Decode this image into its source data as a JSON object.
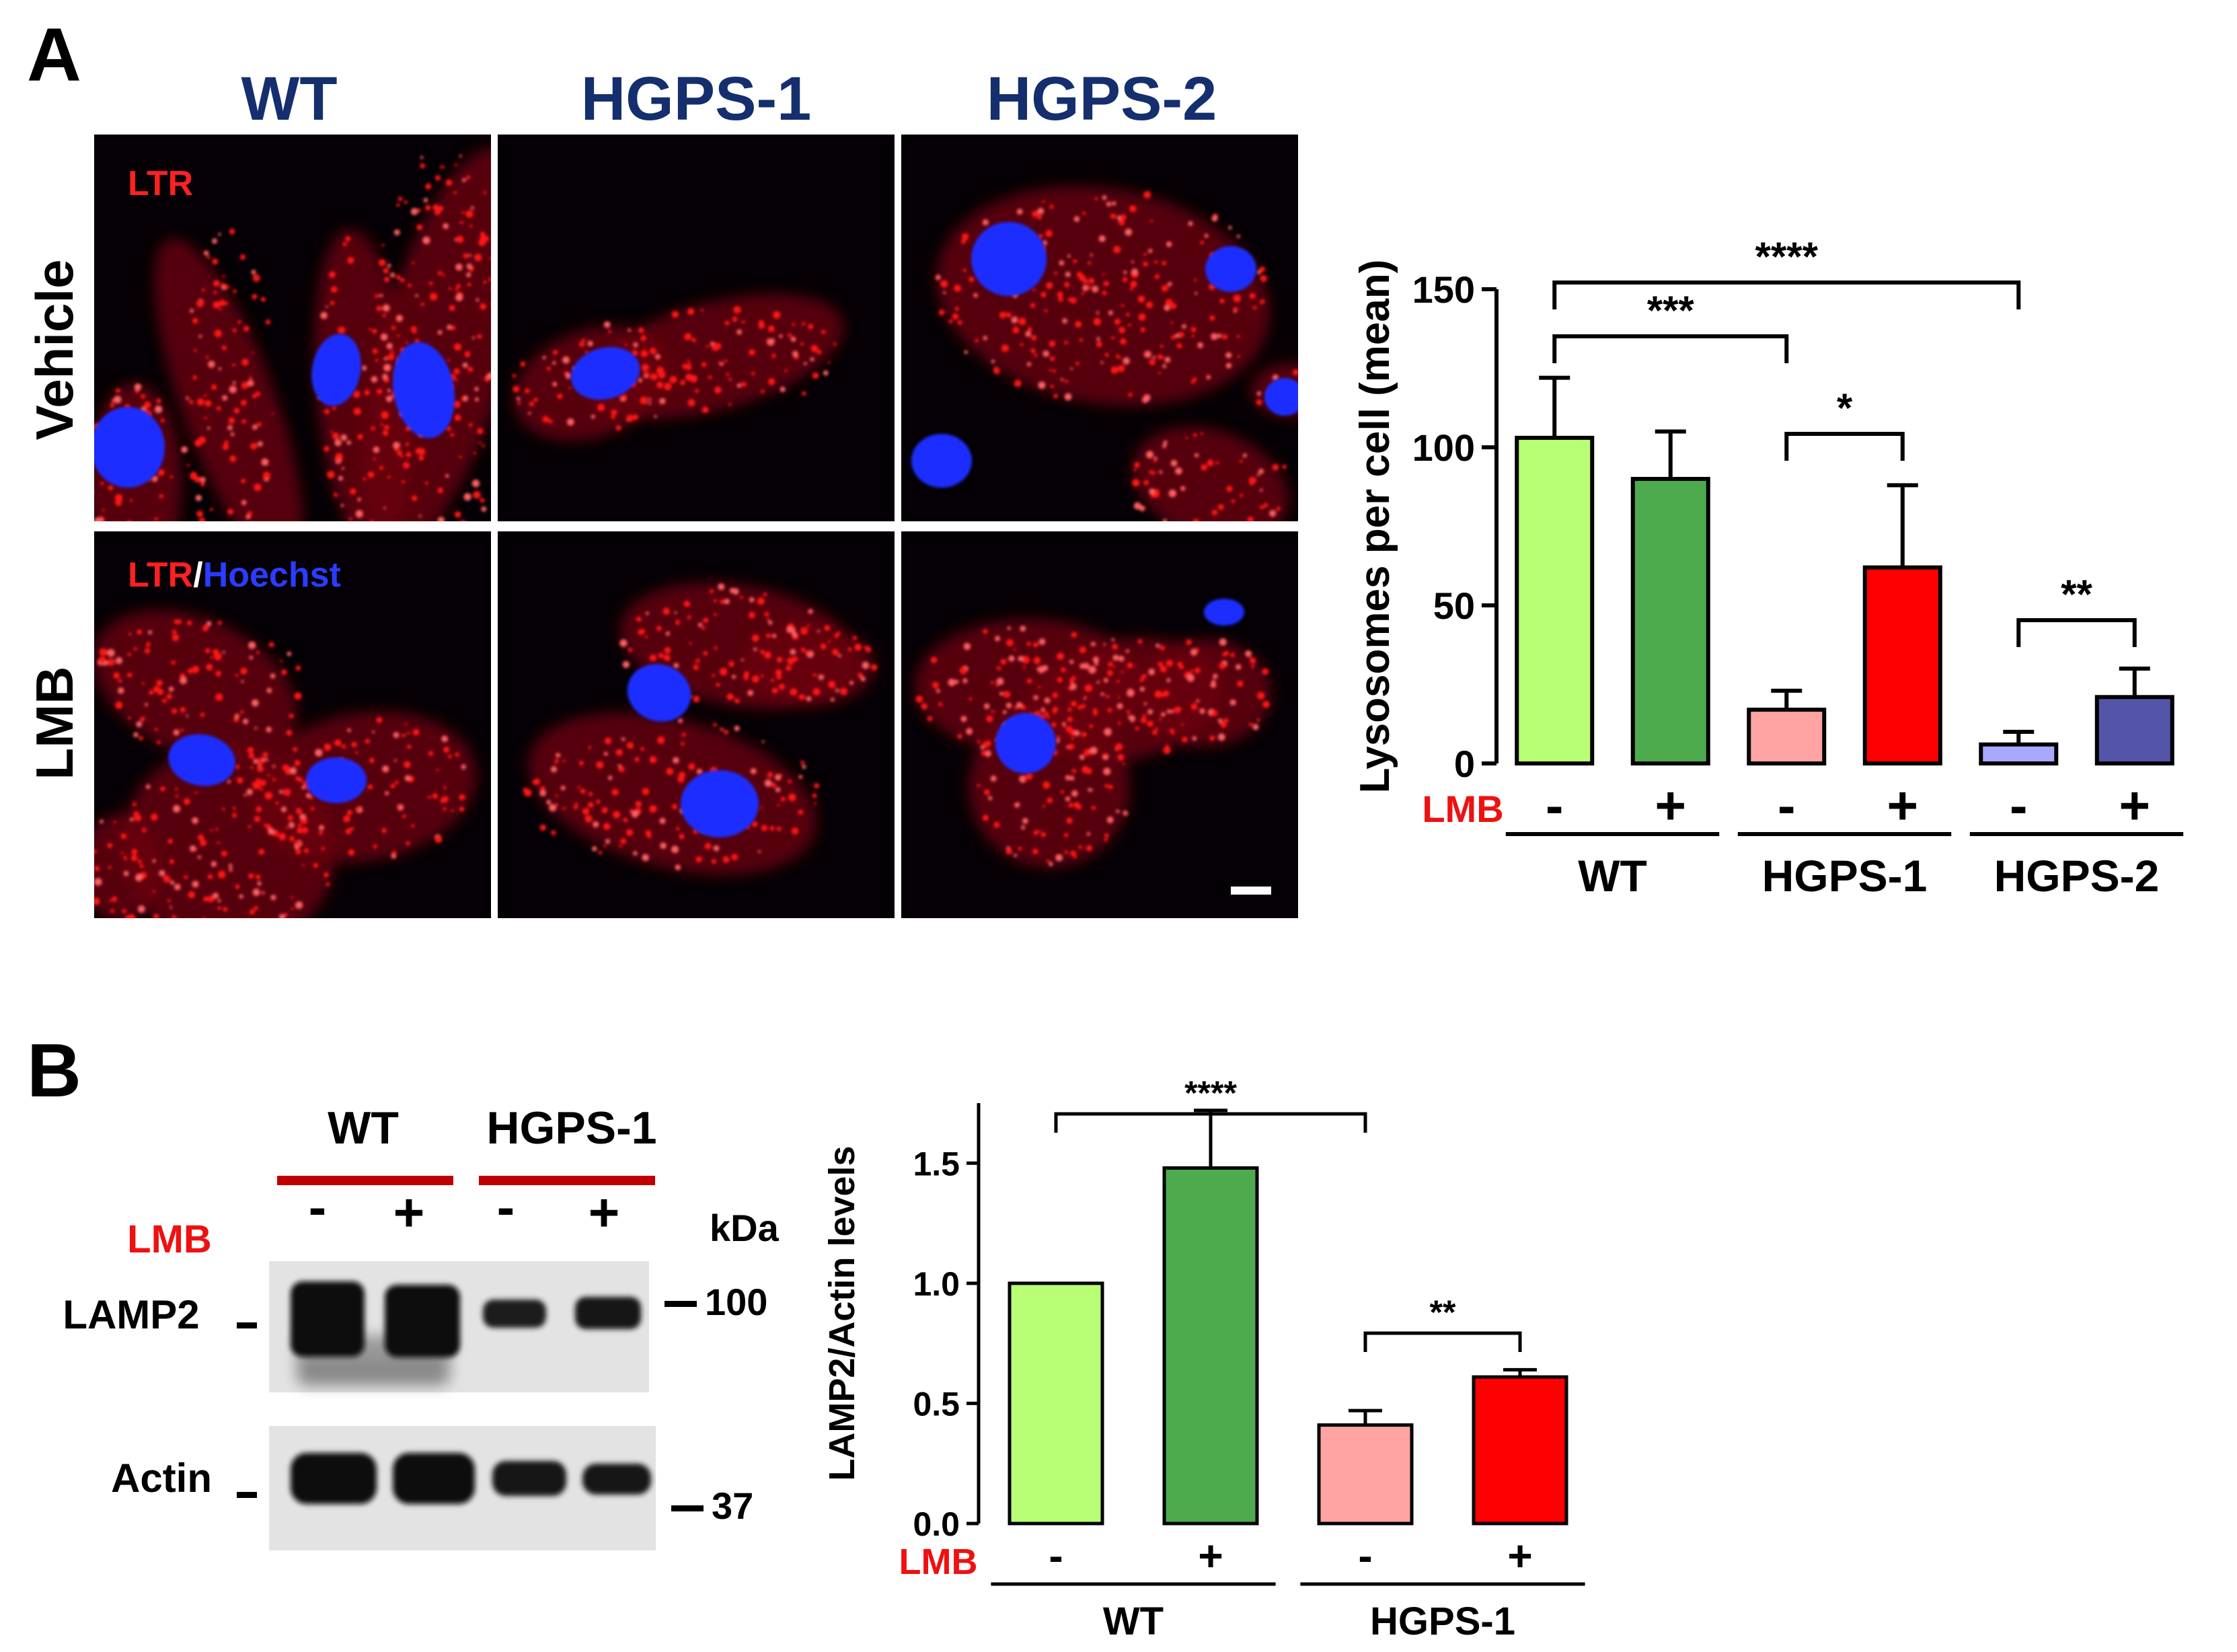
{
  "panel_a": {
    "label": "A",
    "columns": [
      "WT",
      "HGPS-1",
      "HGPS-2"
    ],
    "rows": [
      "Vehicle",
      "LMB"
    ],
    "stain_label_1": "LTR",
    "stain_label_2a": "LTR",
    "stain_label_2b": "/",
    "stain_label_2c": "Hoechst"
  },
  "panel_b": {
    "label": "B",
    "blot_groups": [
      "WT",
      "HGPS-1"
    ],
    "lmb_label": "LMB",
    "lane_signs": [
      "-",
      "+",
      "-",
      "+"
    ],
    "kda_label": "kDa",
    "rows": [
      "LAMP2",
      "Actin"
    ],
    "markers": [
      "100",
      "37"
    ]
  },
  "colors": {
    "title_blue": "#142e6e",
    "stain_red": "#ff2020",
    "stain_blue": "#2a3cff",
    "lmb_red": "#ee1111",
    "blot_bar_red": "#c00000"
  },
  "chart_data": [
    {
      "type": "bar",
      "panel": "A",
      "ylabel": "Lysosomes per cell (mean)",
      "ylim": [
        0,
        150
      ],
      "yticks": [
        0,
        50,
        100,
        150
      ],
      "treatment_label": "LMB",
      "groups": [
        "WT",
        "HGPS-1",
        "HGPS-2"
      ],
      "categories": [
        "-",
        "+",
        "-",
        "+",
        "-",
        "+"
      ],
      "values": [
        103,
        90,
        17,
        62,
        6,
        21
      ],
      "errors": [
        19,
        15,
        6,
        26,
        4,
        9
      ],
      "colors": [
        "#b9ff75",
        "#4daa4d",
        "#ffa3a3",
        "#ff0000",
        "#a8a8ff",
        "#5454a8"
      ],
      "significance": [
        {
          "from": 0,
          "to": 4,
          "label": "****"
        },
        {
          "from": 0,
          "to": 2,
          "label": "***"
        },
        {
          "from": 2,
          "to": 3,
          "label": "*"
        },
        {
          "from": 4,
          "to": 5,
          "label": "**"
        }
      ]
    },
    {
      "type": "bar",
      "panel": "B",
      "ylabel": "LAMP2/Actin levels",
      "ylim": [
        0,
        1.75
      ],
      "yticks": [
        "0.0",
        "0.5",
        "1.0",
        "1.5"
      ],
      "treatment_label": "LMB",
      "groups": [
        "WT",
        "HGPS-1"
      ],
      "categories": [
        "-",
        "+",
        "-",
        "+"
      ],
      "values": [
        1.0,
        1.48,
        0.41,
        0.61
      ],
      "errors": [
        0,
        0.24,
        0.06,
        0.03
      ],
      "colors": [
        "#b9ff75",
        "#4daa4d",
        "#ffa3a3",
        "#ff0000"
      ],
      "significance": [
        {
          "from": 0,
          "to": 2,
          "label": "****"
        },
        {
          "from": 2,
          "to": 3,
          "label": "**"
        }
      ]
    }
  ]
}
